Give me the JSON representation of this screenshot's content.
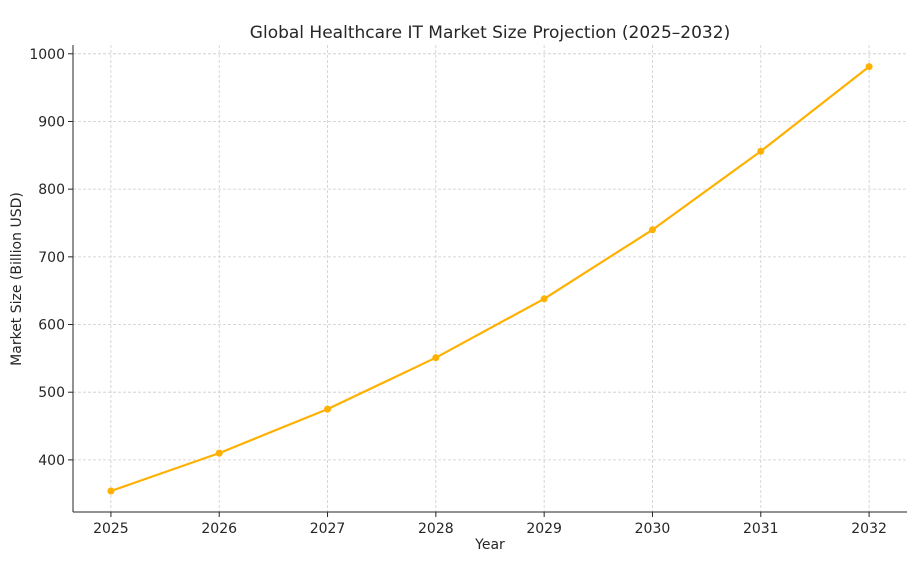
{
  "chart_data": {
    "type": "line",
    "title": "Global Healthcare IT Market Size Projection (2025–2032)",
    "xlabel": "Year",
    "ylabel": "Market Size (Billion USD)",
    "x": [
      2025,
      2026,
      2027,
      2028,
      2029,
      2030,
      2031,
      2032
    ],
    "x_tick_labels": [
      "2025",
      "2026",
      "2027",
      "2028",
      "2029",
      "2030",
      "2031",
      "2032"
    ],
    "y_ticks": [
      400,
      500,
      600,
      700,
      800,
      900,
      1000
    ],
    "y_tick_labels": [
      "400",
      "500",
      "600",
      "700",
      "800",
      "900",
      "1000"
    ],
    "series": [
      {
        "name": "Market Size",
        "values": [
          354,
          410,
          475,
          551,
          638,
          740,
          856,
          981
        ],
        "color": "#FFB000",
        "marker": "circle"
      }
    ],
    "xlim": [
      2024.65,
      2032.35
    ],
    "ylim": [
      323,
      1013
    ],
    "grid": true,
    "legend": "none"
  }
}
